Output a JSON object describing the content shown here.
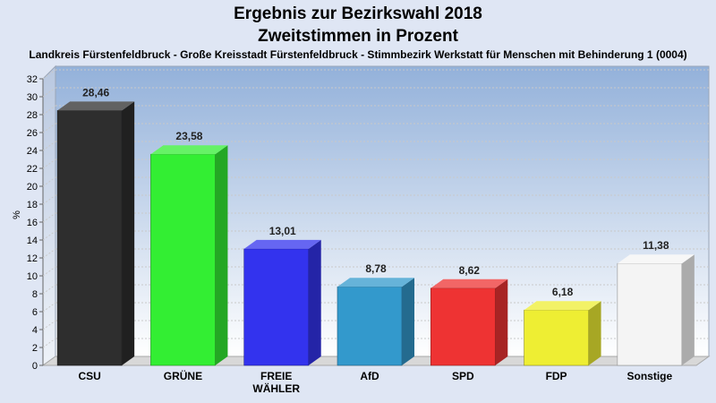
{
  "title_line1": "Ergebnis zur Bezirkswahl 2018",
  "title_line2": "Zweitstimmen in Prozent",
  "subtitle": "Landkreis Fürstenfeldbruck - Große Kreisstadt Fürstenfeldbruck - Stimmbezirk Werkstatt für Menschen mit Behinderung 1 (0004)",
  "chart_data": {
    "type": "bar",
    "title": "Ergebnis zur Bezirkswahl 2018 Zweitstimmen in Prozent",
    "ylabel": "%",
    "ylim": [
      0,
      32
    ],
    "yticks": [
      0,
      2,
      4,
      6,
      8,
      10,
      12,
      14,
      16,
      18,
      20,
      22,
      24,
      26,
      28,
      30,
      32
    ],
    "grid": true,
    "categories": [
      "CSU",
      "GRÜNE",
      "FREIE WÄHLER",
      "AfD",
      "SPD",
      "FDP",
      "Sonstige"
    ],
    "category_lines": [
      [
        "CSU"
      ],
      [
        "GRÜNE"
      ],
      [
        "FREIE",
        "WÄHLER"
      ],
      [
        "AfD"
      ],
      [
        "SPD"
      ],
      [
        "FDP"
      ],
      [
        "Sonstige"
      ]
    ],
    "values": [
      28.46,
      23.58,
      13.01,
      8.78,
      8.62,
      6.18,
      11.38
    ],
    "value_labels": [
      "28,46",
      "23,58",
      "13,01",
      "8,78",
      "8,62",
      "6,18",
      "11,38"
    ],
    "colors": [
      "#2e2e2e",
      "#33ee33",
      "#3333ee",
      "#3399cc",
      "#ee3333",
      "#eeee33",
      "#f4f4f4"
    ]
  }
}
